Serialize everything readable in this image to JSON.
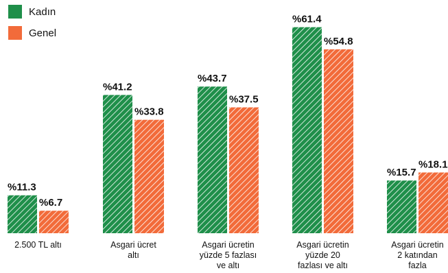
{
  "chart_data": {
    "type": "bar",
    "title": "",
    "xlabel": "",
    "ylabel": "",
    "ylim": [
      0,
      65
    ],
    "grid": false,
    "legend_position": "top-left",
    "value_prefix": "%",
    "categories": [
      [
        "2.500 TL altı"
      ],
      [
        "Asgari ücret",
        "altı"
      ],
      [
        "Asgari ücretin",
        "yüzde 5 fazlası",
        "ve altı"
      ],
      [
        "Asgari ücretin",
        "yüzde 20",
        "fazlası ve altı"
      ],
      [
        "Asgari ücretin",
        "2 katından",
        "fazla"
      ]
    ],
    "series": [
      {
        "name": "Kadın",
        "color": "#1f8f4a",
        "values": [
          11.3,
          41.2,
          43.7,
          61.4,
          15.7
        ]
      },
      {
        "name": "Genel",
        "color": "#f26b3a",
        "values": [
          6.7,
          33.8,
          37.5,
          54.8,
          18.1
        ]
      }
    ]
  }
}
